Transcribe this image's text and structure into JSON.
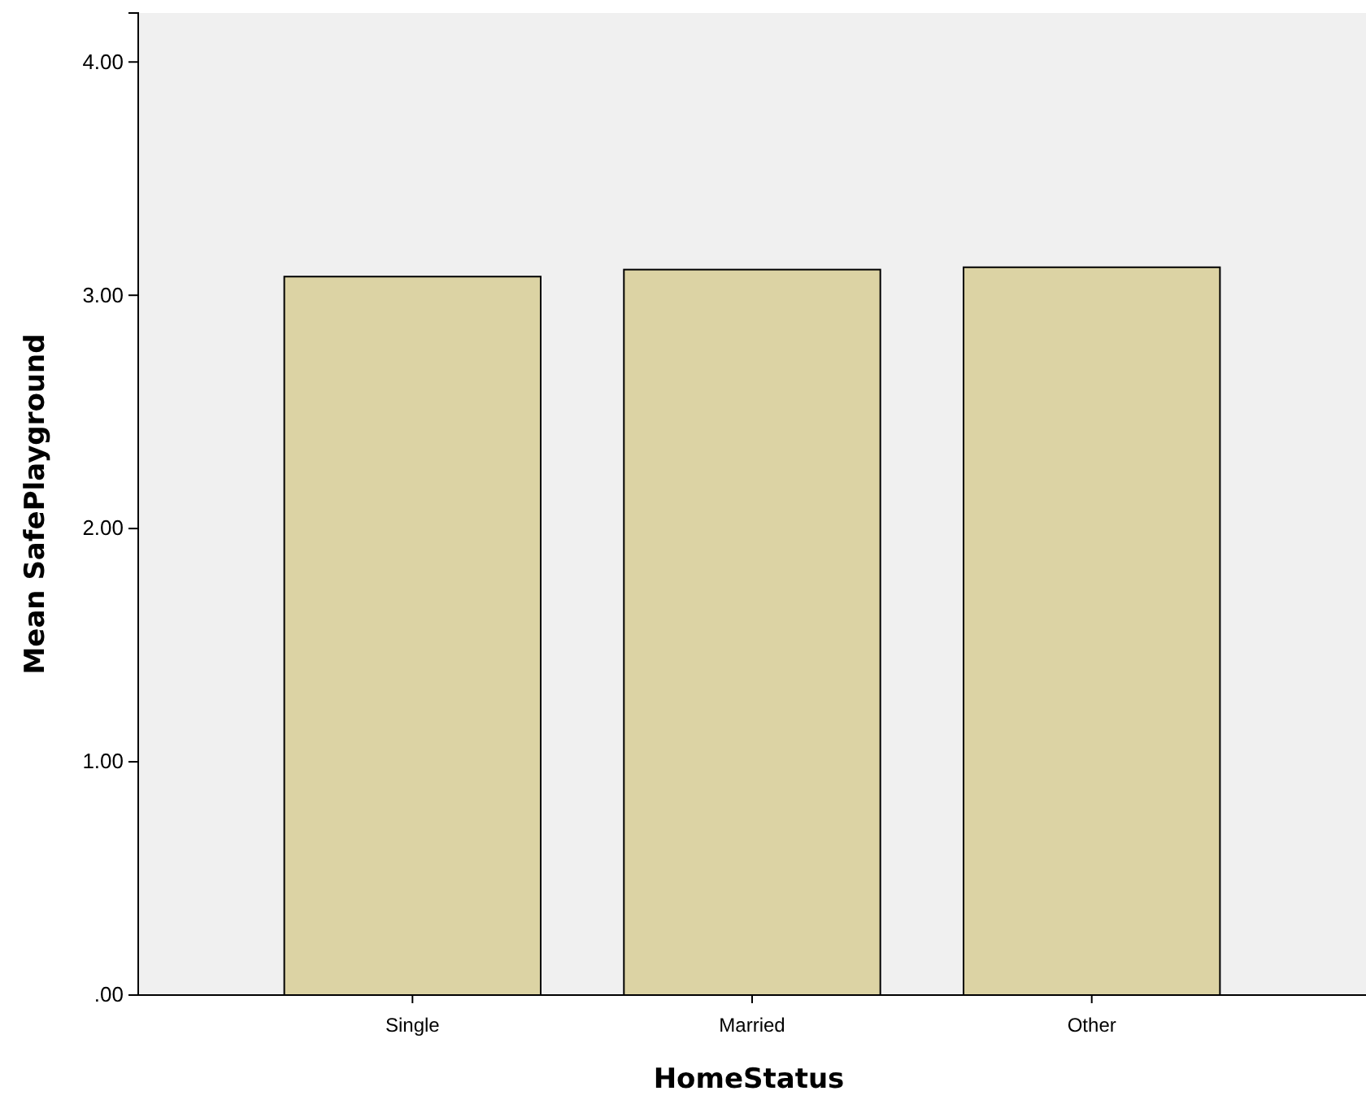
{
  "chart_data": {
    "type": "bar",
    "xlabel": "HomeStatus",
    "ylabel": "Mean SafePlayground",
    "categories": [
      "Single",
      "Married",
      "Other"
    ],
    "values": [
      3.08,
      3.11,
      3.12
    ],
    "color": "#dcd3a4",
    "ylim": [
      0,
      4.21
    ],
    "yticks": [
      {
        "value": 0,
        "label": ".00"
      },
      {
        "value": 1,
        "label": "1.00"
      },
      {
        "value": 2,
        "label": "2.00"
      },
      {
        "value": 3,
        "label": "3.00"
      },
      {
        "value": 4,
        "label": "4.00"
      }
    ],
    "grid": false
  }
}
